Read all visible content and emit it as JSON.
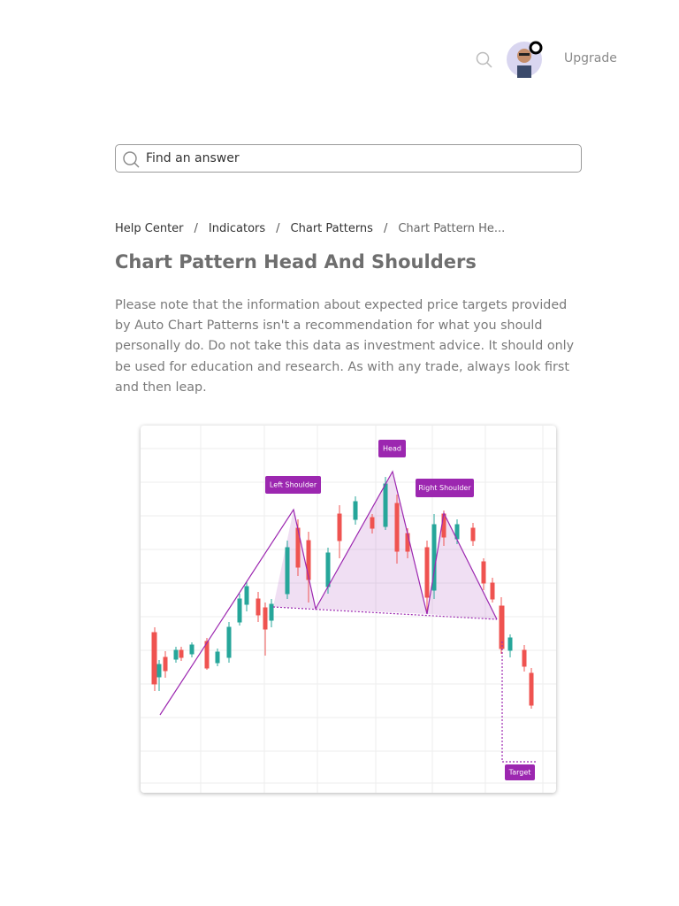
{
  "header": {
    "action": "Upgrade"
  },
  "search": {
    "placeholder": "Find an answer"
  },
  "breadcrumb": {
    "items": [
      "Help Center",
      "Indicators",
      "Chart Patterns",
      "Chart Pattern He..."
    ],
    "separator": "/"
  },
  "article": {
    "title": "Chart Pattern Head And Shoulders",
    "body": "Please note that the information about expected price targets provided by Auto Chart Patterns isn't a recommendation for what you should personally do. Do not take this data as investment advice. It should only be used for education and research. As with any trade, always look first and then leap."
  },
  "figure": {
    "left_shoulder": "Left Shoulder",
    "head": "Head",
    "right_shoulder": "Right Shoulder",
    "target": "Target"
  }
}
